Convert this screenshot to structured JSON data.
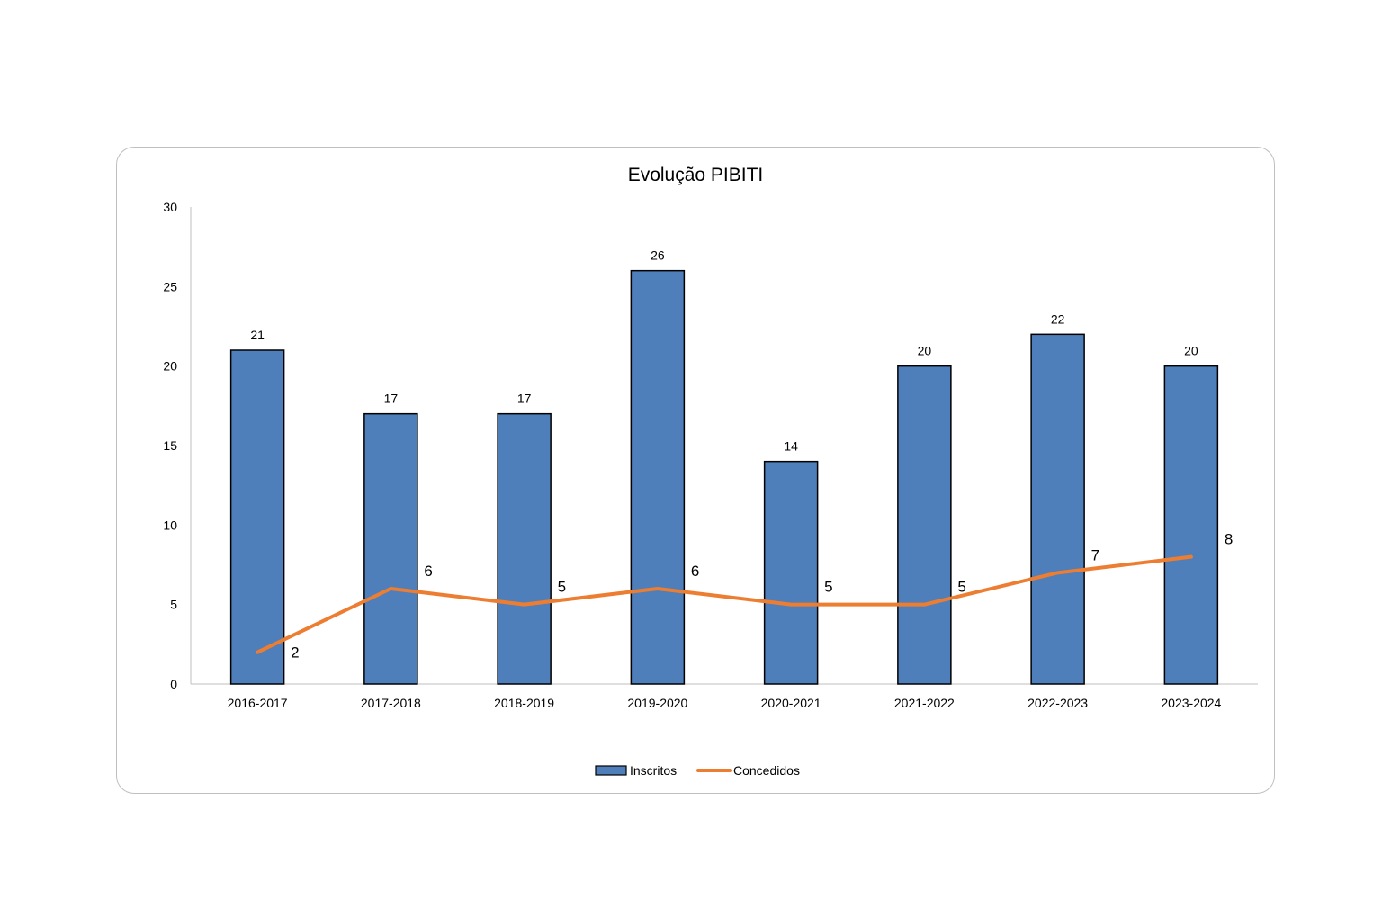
{
  "chart_data": {
    "type": "bar",
    "title": "Evolução PIBITI",
    "xlabel": "",
    "ylabel": "",
    "categories": [
      "2016-2017",
      "2017-2018",
      "2018-2019",
      "2019-2020",
      "2020-2021",
      "2021-2022",
      "2022-2023",
      "2023-2024"
    ],
    "ylim": [
      0,
      30
    ],
    "yticks": [
      0,
      5,
      10,
      15,
      20,
      25,
      30
    ],
    "grid": false,
    "legend_position": "bottom",
    "series": [
      {
        "name": "Inscritos",
        "type": "bar",
        "color": "#4f7fbb",
        "values": [
          21,
          17,
          17,
          26,
          14,
          20,
          22,
          20
        ]
      },
      {
        "name": "Concedidos",
        "type": "line",
        "color": "#ed7d31",
        "values": [
          2,
          6,
          5,
          6,
          5,
          5,
          7,
          8
        ]
      }
    ]
  }
}
